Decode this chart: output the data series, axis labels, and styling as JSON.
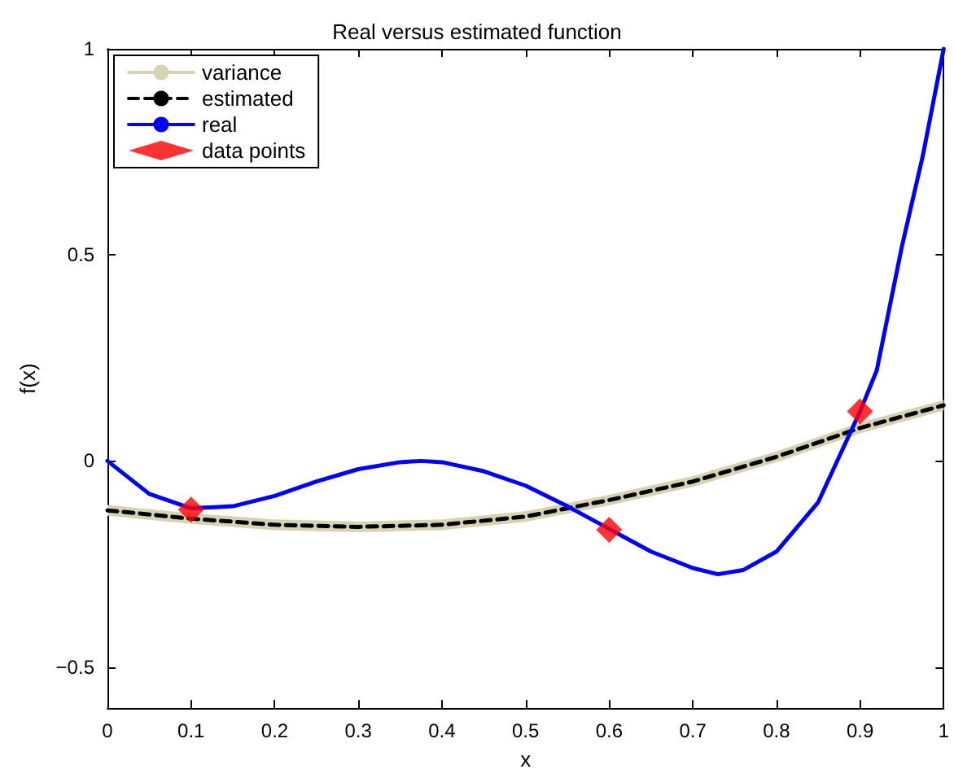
{
  "chart_data": {
    "type": "line",
    "title": "Real versus estimated function",
    "xlabel": "x",
    "ylabel": "f(x)",
    "xlim": [
      0,
      1
    ],
    "xticks": [
      0,
      0.1,
      0.2,
      0.3,
      0.4,
      0.5,
      0.6,
      0.7,
      0.8,
      0.9,
      1
    ],
    "ylim": [
      -0.6,
      1
    ],
    "yticks": [
      -0.5,
      0,
      0.5,
      1
    ],
    "grid": false,
    "legend": "top left",
    "series": [
      {
        "name": "variance",
        "type": "line",
        "color": "#d6d3b3",
        "x": [
          0,
          0.1,
          0.2,
          0.3,
          0.4,
          0.5,
          0.6,
          0.7,
          0.8,
          0.9,
          1
        ],
        "values": [
          null,
          null,
          null,
          null,
          null,
          null,
          null,
          null,
          null,
          null,
          null
        ],
        "lower": [
          -0.133,
          -0.153,
          -0.168,
          -0.173,
          -0.168,
          -0.148,
          -0.108,
          -0.063,
          -0.003,
          0.067,
          0.122
        ],
        "upper": [
          -0.107,
          -0.127,
          -0.142,
          -0.147,
          -0.142,
          -0.122,
          -0.082,
          -0.037,
          0.023,
          0.093,
          0.148
        ]
      },
      {
        "name": "estimated",
        "type": "line",
        "color": "#000000",
        "line_style": "dashed",
        "marker": "none",
        "x": [
          0,
          0.1,
          0.2,
          0.3,
          0.4,
          0.5,
          0.6,
          0.7,
          0.8,
          0.9,
          1
        ],
        "values": [
          -0.12,
          -0.14,
          -0.155,
          -0.16,
          -0.155,
          -0.135,
          -0.095,
          -0.05,
          0.01,
          0.08,
          0.135
        ]
      },
      {
        "name": "real",
        "type": "line",
        "color": "#0000ff",
        "line_style": "solid",
        "marker": "none",
        "x": [
          0,
          0.05,
          0.1,
          0.15,
          0.2,
          0.25,
          0.3,
          0.35,
          0.375,
          0.4,
          0.45,
          0.5,
          0.55,
          0.6,
          0.65,
          0.7,
          0.73,
          0.76,
          0.8,
          0.85,
          0.9,
          0.92,
          0.95,
          0.975,
          1
        ],
        "values": [
          0,
          -0.08,
          -0.115,
          -0.11,
          -0.085,
          -0.05,
          -0.02,
          -0.003,
          0,
          -0.003,
          -0.025,
          -0.06,
          -0.11,
          -0.165,
          -0.22,
          -0.26,
          -0.275,
          -0.265,
          -0.22,
          -0.1,
          0.12,
          0.22,
          0.52,
          0.74,
          1
        ]
      },
      {
        "name": "data points",
        "type": "scatter",
        "color": "#ff0000",
        "marker": "diamond",
        "x": [
          0.1,
          0.6,
          0.9
        ],
        "values": [
          -0.118,
          -0.167,
          0.12
        ]
      }
    ]
  }
}
